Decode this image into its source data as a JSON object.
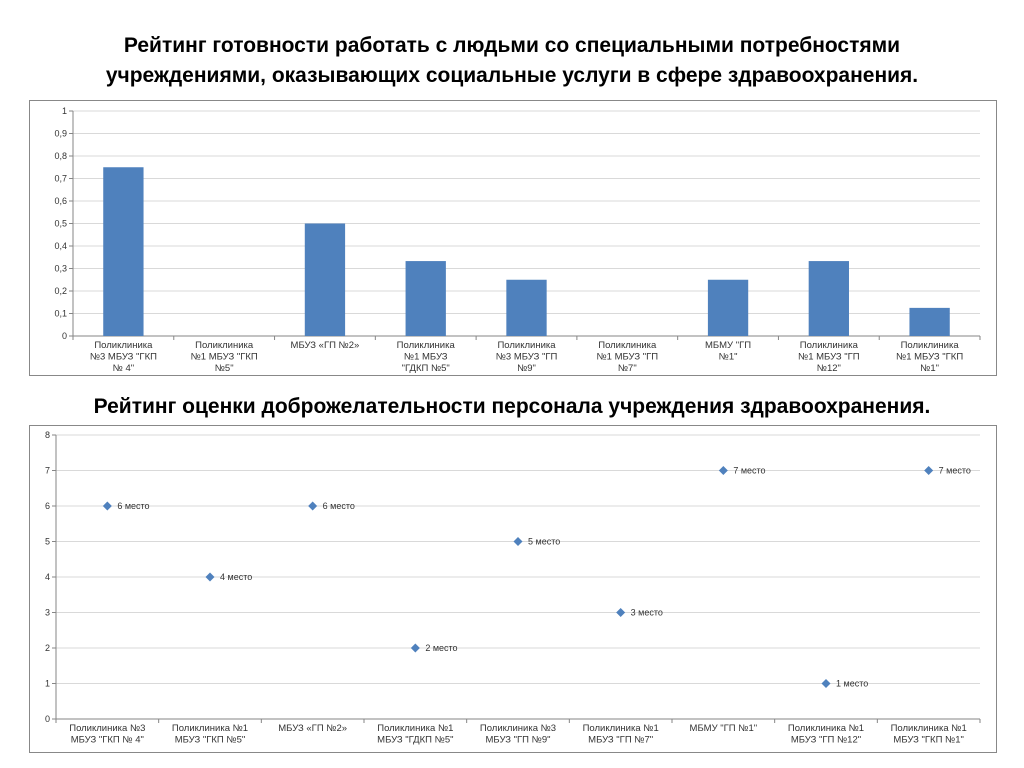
{
  "titles": {
    "chart1_line1": "Рейтинг готовности работать с людьми со специальными потребностями",
    "chart1_line2": "учреждениями, оказывающих социальные услуги в сфере здравоохранения.",
    "chart2": "Рейтинг оценки доброжелательности персонала учреждения здравоохранения."
  },
  "colors": {
    "bar": "#4f81bd",
    "marker": "#4f81bd",
    "grid": "#d9d9d9",
    "axis": "#868686"
  },
  "chart_data": [
    {
      "type": "bar",
      "title": "",
      "xlabel": "",
      "ylabel": "",
      "ylim": [
        0,
        1
      ],
      "yticks": [
        "0",
        "0,1",
        "0,2",
        "0,3",
        "0,4",
        "0,5",
        "0,6",
        "0,7",
        "0,8",
        "0,9",
        "1"
      ],
      "grid": true,
      "categories": [
        [
          "Поликлиника",
          "№3 МБУЗ \"ГКП",
          "№ 4\""
        ],
        [
          "Поликлиника",
          "№1 МБУЗ \"ГКП",
          "№5\""
        ],
        [
          "МБУЗ «ГП №2»"
        ],
        [
          "Поликлиника",
          "№1 МБУЗ",
          "\"ГДКП №5\""
        ],
        [
          "Поликлиника",
          "№3 МБУЗ \"ГП",
          "№9\""
        ],
        [
          "Поликлиника",
          "№1 МБУЗ \"ГП",
          "№7\""
        ],
        [
          "МБМУ \"ГП",
          "№1\""
        ],
        [
          "Поликлиника",
          "№1 МБУЗ \"ГП",
          "№12\""
        ],
        [
          "Поликлиника",
          "№1 МБУЗ \"ГКП",
          "№1\""
        ]
      ],
      "values": [
        0.75,
        0,
        0.5,
        0.333,
        0.25,
        0,
        0.25,
        0.333,
        0.125
      ]
    },
    {
      "type": "scatter",
      "title": "",
      "xlabel": "",
      "ylabel": "",
      "ylim": [
        0,
        8
      ],
      "yticks": [
        "0",
        "1",
        "2",
        "3",
        "4",
        "5",
        "6",
        "7",
        "8"
      ],
      "grid": true,
      "categories": [
        [
          "Поликлиника №3",
          "МБУЗ \"ГКП № 4\""
        ],
        [
          "Поликлиника №1",
          "МБУЗ \"ГКП №5\""
        ],
        [
          "МБУЗ «ГП №2»"
        ],
        [
          "Поликлиника №1",
          "МБУЗ \"ГДКП №5\""
        ],
        [
          "Поликлиника №3",
          "МБУЗ \"ГП №9\""
        ],
        [
          "Поликлиника №1",
          "МБУЗ \"ГП №7\""
        ],
        [
          "МБМУ \"ГП №1\""
        ],
        [
          "Поликлиника №1",
          "МБУЗ \"ГП №12\""
        ],
        [
          "Поликлиника №1",
          "МБУЗ \"ГКП №1\""
        ]
      ],
      "values": [
        6,
        4,
        6,
        2,
        5,
        3,
        7,
        1,
        7
      ],
      "point_labels": [
        "6 место",
        "4 место",
        "6 место",
        "2 место",
        "5 место",
        "3 место",
        "7 место",
        "1 место",
        "7 место"
      ]
    }
  ]
}
